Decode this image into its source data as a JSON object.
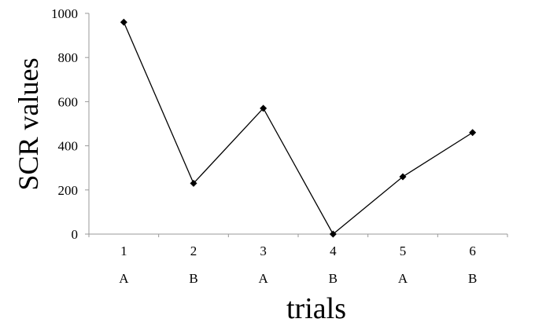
{
  "chart_data": {
    "type": "line",
    "title": "",
    "xlabel": "trials",
    "ylabel": "SCR values",
    "x": [
      "1",
      "2",
      "3",
      "4",
      "5",
      "6"
    ],
    "x_sublabels": [
      "A",
      "B",
      "A",
      "B",
      "A",
      "B"
    ],
    "series": [
      {
        "values": [
          960,
          230,
          570,
          0,
          260,
          460
        ],
        "color": "#000000",
        "marker": "diamond"
      }
    ],
    "ylim": [
      0,
      1000
    ],
    "yticks": [
      0,
      200,
      400,
      600,
      800,
      1000
    ],
    "grid": false,
    "legend": "none"
  }
}
